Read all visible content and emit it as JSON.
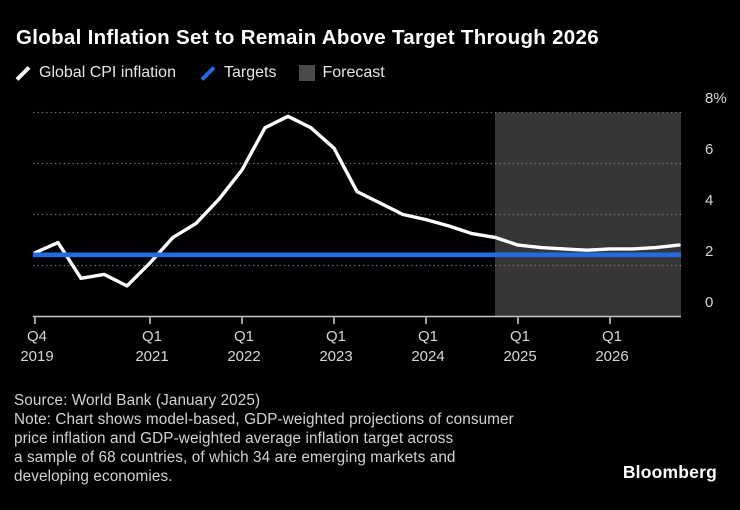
{
  "title": "Global Inflation Set to Remain Above Target Through 2026",
  "legend": [
    {
      "label": "Global CPI inflation",
      "swatch": "white-slash-line",
      "color": "#ffffff"
    },
    {
      "label": "Targets",
      "swatch": "blue-slash-line",
      "color": "#1e6ceb"
    },
    {
      "label": "Forecast",
      "swatch": "gray-square",
      "color": "#4a4a4a"
    }
  ],
  "chart_data": {
    "type": "line",
    "title": "Global Inflation Set to Remain Above Target Through 2026",
    "ylabel": "%",
    "ylim": [
      0,
      8
    ],
    "grid": "dotted-horizontal",
    "legend_position": "top-left",
    "y_ticks": [
      {
        "value": 8,
        "label": "8%"
      },
      {
        "value": 6,
        "label": "6"
      },
      {
        "value": 4,
        "label": "4"
      },
      {
        "value": 2,
        "label": "2"
      },
      {
        "value": 0,
        "label": "0"
      }
    ],
    "x_ticks": [
      {
        "index": 0,
        "quarter": "Q4",
        "year": "2019"
      },
      {
        "index": 5,
        "quarter": "Q1",
        "year": "2021"
      },
      {
        "index": 9,
        "quarter": "Q1",
        "year": "2022"
      },
      {
        "index": 13,
        "quarter": "Q1",
        "year": "2023"
      },
      {
        "index": 17,
        "quarter": "Q1",
        "year": "2024"
      },
      {
        "index": 21,
        "quarter": "Q1",
        "year": "2025"
      },
      {
        "index": 25,
        "quarter": "Q1",
        "year": "2026"
      }
    ],
    "quarters": [
      "2019Q4",
      "2020Q1",
      "2020Q2",
      "2020Q3",
      "2020Q4",
      "2021Q1",
      "2021Q2",
      "2021Q3",
      "2021Q4",
      "2022Q1",
      "2022Q2",
      "2022Q3",
      "2022Q4",
      "2023Q1",
      "2023Q2",
      "2023Q3",
      "2023Q4",
      "2024Q1",
      "2024Q2",
      "2024Q3",
      "2024Q4",
      "2025Q1",
      "2025Q2",
      "2025Q3",
      "2025Q4",
      "2026Q1",
      "2026Q2",
      "2026Q3",
      "2026Q4"
    ],
    "series": [
      {
        "name": "Global CPI inflation",
        "type": "line",
        "color": "#ffffff",
        "values": [
          2.5,
          2.9,
          1.5,
          1.65,
          1.2,
          2.1,
          3.1,
          3.65,
          4.6,
          5.75,
          7.4,
          7.85,
          7.4,
          6.6,
          4.9,
          4.45,
          4.0,
          3.8,
          3.55,
          3.25,
          3.1,
          2.8,
          2.7,
          2.65,
          2.6,
          2.65,
          2.65,
          2.7,
          2.8
        ]
      },
      {
        "name": "Targets",
        "type": "flat-line",
        "color": "#1e6ceb",
        "value": 2.42
      }
    ],
    "forecast": {
      "label": "Forecast",
      "start_quarter": "2024Q4",
      "end_quarter": "2026Q4",
      "start_index": 20,
      "region_color": "#363636"
    },
    "colors": {
      "background": "#000000",
      "gridline": "#737373",
      "axis": "#c6c6c6",
      "tick_label": "#d6d6d6"
    }
  },
  "footer": {
    "lines": [
      "Source: World Bank (January 2025)",
      "Note: Chart shows model-based, GDP-weighted projections of consumer",
      "price inflation and GDP-weighted average inflation target across",
      "a sample of 68 countries, of which 34 are emerging markets and",
      "developing economies."
    ]
  },
  "brand": "Bloomberg"
}
